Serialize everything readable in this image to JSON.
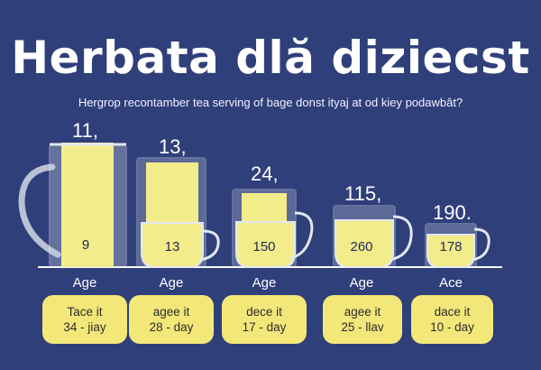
{
  "title": "Herbata dlă diziecst",
  "subtitle": "Hergrop recontamber tea serving of bage donst ityaj at od kiey podawbât?",
  "vessels": [
    {
      "top": "11,",
      "inside": "9",
      "label": "Age",
      "card_line1": "Tace it",
      "card_line2": "34 - jiay"
    },
    {
      "top": "13,",
      "inside": "13",
      "label": "Age",
      "card_line1": "agee it",
      "card_line2": "28 - day"
    },
    {
      "top": "24,",
      "inside": "150",
      "label": "Age",
      "card_line1": "dece it",
      "card_line2": "17 - day"
    },
    {
      "top": "115,",
      "inside": "260",
      "label": "Age",
      "card_line1": "agee it",
      "card_line2": "25 - llav"
    },
    {
      "top": "190.",
      "inside": "178",
      "label": "Ace",
      "card_line1": "dace it",
      "card_line2": "10 - day"
    }
  ],
  "colors": {
    "background": "#2f3f7a",
    "tea": "#f3ec8a",
    "card": "#f3e77a",
    "glass": "#c9cfdf"
  }
}
